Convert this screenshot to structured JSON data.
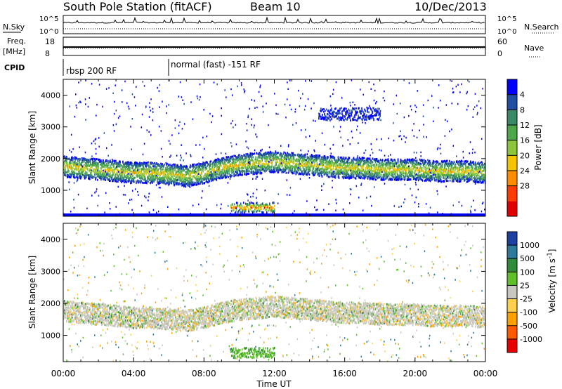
{
  "header": {
    "station": "South Pole Station (fitACF)",
    "beam": "Beam 10",
    "date": "10/Dec/2013"
  },
  "status_panels": {
    "nsky_label": "N.Sky",
    "nsearch_label": "N.Search",
    "freq_label_1": "Freq.",
    "freq_label_2": "[MHz]",
    "nave_label": "Nave",
    "cpid_label": "CPID",
    "nsky_ticks": [
      "10^5",
      "10^0"
    ],
    "nsearch_ticks": [
      "10^5",
      "10^0"
    ],
    "freq_ticks": [
      "18",
      "8"
    ],
    "nave_ticks": [
      "60",
      "0"
    ],
    "cpid_segments": [
      {
        "start_hour": 0,
        "label": "rbsp 200 RF"
      },
      {
        "start_hour": 6,
        "label": "normal (fast) -151 RF"
      }
    ]
  },
  "chart_data": [
    {
      "type": "heatmap",
      "quantity": "Power",
      "ylabel": "Slant Range [km]",
      "xlabel": "",
      "ylim": [
        180,
        4500
      ],
      "xlim_hours": [
        0,
        24
      ],
      "y_ticks": [
        "1000",
        "2000",
        "3000",
        "4000"
      ],
      "colorbar": {
        "label": "Power [dB]",
        "ticks": [
          "4",
          "8",
          "12",
          "16",
          "20",
          "24",
          "28"
        ],
        "colors": [
          "#0000ff",
          "#1f4fa3",
          "#3a8a6a",
          "#4ea84a",
          "#8cc43c",
          "#f5c400",
          "#ff8c00",
          "#ff3c00",
          "#e00000"
        ]
      },
      "regions": [
        {
          "band": "main",
          "start_hour": 0,
          "end_hour": 24,
          "center_km": [
            1750,
            1700,
            1650,
            1600,
            1550,
            1550,
            1500,
            1450,
            1550,
            1700,
            1800,
            1850,
            1900,
            1850,
            1800,
            1750,
            1700,
            1700,
            1650,
            1650,
            1650,
            1600,
            1600,
            1600,
            1550
          ],
          "peak_db": 22
        },
        {
          "band": "near",
          "start_hour": 9.5,
          "end_hour": 12,
          "center_km": 450,
          "peak_db": 28
        },
        {
          "band": "high",
          "start_hour": 14.5,
          "end_hour": 18,
          "center_km": 3400,
          "peak_db": 8
        }
      ]
    },
    {
      "type": "heatmap",
      "quantity": "Velocity",
      "ylabel": "Slant Range [km]",
      "xlabel": "Time UT",
      "ylim": [
        180,
        4500
      ],
      "xlim_hours": [
        0,
        24
      ],
      "y_ticks": [
        "1000",
        "2000",
        "3000",
        "4000"
      ],
      "x_ticks": [
        "00:00",
        "04:00",
        "08:00",
        "12:00",
        "16:00",
        "20:00",
        "00:00"
      ],
      "colorbar": {
        "label": "Velocity [m s^-1]",
        "ticks": [
          "1000",
          "500",
          "100",
          "25",
          "-25",
          "-100",
          "-500",
          "-1000"
        ],
        "colors": [
          "#1c3fa0",
          "#2e7a9a",
          "#2f8a3a",
          "#5fc02a",
          "#c8c8c0",
          "#ffd050",
          "#ffa000",
          "#ff5a00",
          "#e80000"
        ]
      },
      "regions": [
        {
          "band": "main",
          "start_hour": 0,
          "end_hour": 24,
          "center_km": [
            1750,
            1700,
            1650,
            1600,
            1550,
            1550,
            1500,
            1450,
            1550,
            1700,
            1800,
            1850,
            1900,
            1850,
            1800,
            1750,
            1700,
            1700,
            1650,
            1650,
            1650,
            1600,
            1600,
            1600,
            1550
          ],
          "typical_velocity": 0
        },
        {
          "band": "near",
          "start_hour": 9.5,
          "end_hour": 12,
          "center_km": 450,
          "typical_velocity": 300
        }
      ]
    }
  ]
}
